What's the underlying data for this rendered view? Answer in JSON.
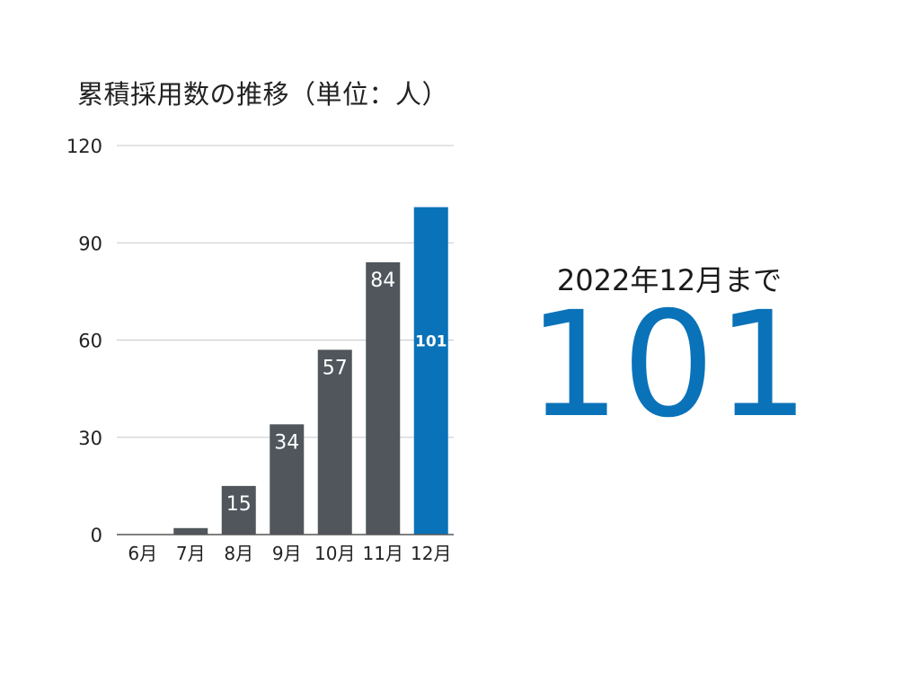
{
  "colors": {
    "bar_default": "#50565c",
    "bar_highlight": "#0a72b8",
    "grid": "#c8c8c8",
    "axis": "#555555",
    "text": "#222222",
    "label_on_bar": "#ffffff"
  },
  "chart_data": {
    "type": "bar",
    "title": "累積採用数の推移（単位：人）",
    "xlabel": "",
    "ylabel": "",
    "categories": [
      "6月",
      "7月",
      "8月",
      "9月",
      "10月",
      "11月",
      "12月"
    ],
    "values": [
      0,
      2,
      15,
      34,
      57,
      84,
      101
    ],
    "data_labels": [
      "",
      "",
      "15",
      "34",
      "57",
      "84",
      "101"
    ],
    "highlight_index": 6,
    "ylim": [
      0,
      120
    ],
    "yticks": [
      0,
      30,
      60,
      90,
      120
    ],
    "grid": true,
    "legend": "none"
  },
  "summary": {
    "caption": "2022年12月まで",
    "value": "101"
  }
}
